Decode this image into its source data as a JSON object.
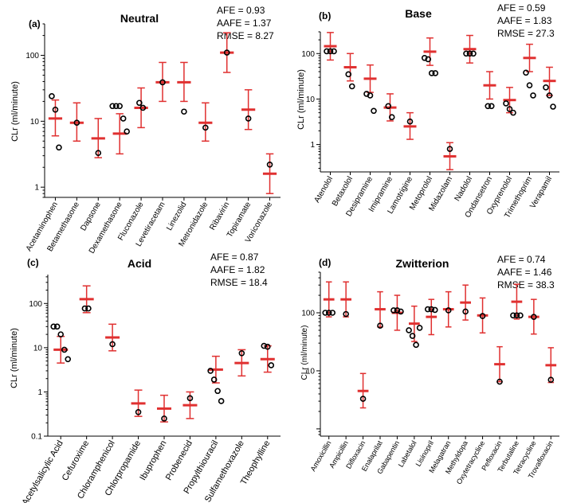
{
  "chart_data": [
    {
      "type": "scatter",
      "panel": "(a)",
      "title": "Neutral",
      "ylabel": "CLr (ml/minute)",
      "yscale": "log",
      "ylim": [
        0.7,
        300
      ],
      "yticks": [
        {
          "v": 1,
          "label": "1"
        },
        {
          "v": 10,
          "label": "10"
        },
        {
          "v": 100,
          "label": "100"
        }
      ],
      "stats": [
        "AFE = 0.93",
        "AAFE = 1.37",
        "RMSE = 8.27"
      ],
      "categories": [
        "Acetaminophen",
        "Betamethasone",
        "Dapsone",
        "Dexamethasone",
        "Fluconazole",
        "Levetiracetam",
        "Linezolid",
        "Metronidazole",
        "Ribavirin",
        "Topiramate",
        "Voriconazole"
      ],
      "predicted": [
        {
          "mean": 11,
          "lo": 6,
          "hi": 21
        },
        {
          "mean": 9.5,
          "lo": 5,
          "hi": 19
        },
        {
          "mean": 5.5,
          "lo": 2.8,
          "hi": 11
        },
        {
          "mean": 6.5,
          "lo": 3.2,
          "hi": 13
        },
        {
          "mean": 16,
          "lo": 8,
          "hi": 32
        },
        {
          "mean": 39,
          "lo": 20,
          "hi": 78
        },
        {
          "mean": 39,
          "lo": 20,
          "hi": 78
        },
        {
          "mean": 9.5,
          "lo": 5,
          "hi": 19
        },
        {
          "mean": 110,
          "lo": 55,
          "hi": 220
        },
        {
          "mean": 15,
          "lo": 7.5,
          "hi": 30
        },
        {
          "mean": 1.6,
          "lo": 0.8,
          "hi": 3.2
        }
      ],
      "observed": [
        [
          24,
          15,
          4
        ],
        [
          9.5
        ],
        [
          3.3
        ],
        [
          17,
          17,
          17,
          11,
          7
        ],
        [
          19,
          16
        ],
        [
          39
        ],
        [
          14
        ],
        [
          8
        ],
        [
          110
        ],
        [
          11
        ],
        [
          2.2
        ]
      ]
    },
    {
      "type": "scatter",
      "panel": "(b)",
      "title": "Base",
      "ylabel": "CLr (ml/minute)",
      "yscale": "log",
      "ylim": [
        0.25,
        300
      ],
      "yticks": [
        {
          "v": 1,
          "label": "1"
        },
        {
          "v": 10,
          "label": "10"
        },
        {
          "v": 100,
          "label": "100"
        }
      ],
      "stats": [
        "AFE = 0.59",
        "AAFE = 1.83",
        "RMSE = 27.3"
      ],
      "categories": [
        "Atenolol",
        "Betaxolol",
        "Desipramine",
        "Imipramine",
        "Lamotrigine",
        "Metoprolol",
        "Midazolam",
        "Nadolol",
        "Ondansetron",
        "Oxyprenolol",
        "Trimethoprim",
        "Verapamil"
      ],
      "predicted": [
        {
          "mean": 145,
          "lo": 72,
          "hi": 290
        },
        {
          "mean": 50,
          "lo": 25,
          "hi": 100
        },
        {
          "mean": 28,
          "lo": 14,
          "hi": 56
        },
        {
          "mean": 6.5,
          "lo": 3.3,
          "hi": 13
        },
        {
          "mean": 2.5,
          "lo": 1.3,
          "hi": 5
        },
        {
          "mean": 110,
          "lo": 55,
          "hi": 220
        },
        {
          "mean": 0.55,
          "lo": 0.28,
          "hi": 1.1
        },
        {
          "mean": 125,
          "lo": 62,
          "hi": 250
        },
        {
          "mean": 20,
          "lo": 10,
          "hi": 40
        },
        {
          "mean": 9.5,
          "lo": 5,
          "hi": 18
        },
        {
          "mean": 80,
          "lo": 40,
          "hi": 160
        },
        {
          "mean": 25,
          "lo": 12,
          "hi": 50
        }
      ],
      "observed": [
        [
          112,
          112,
          112
        ],
        [
          35,
          19
        ],
        [
          13,
          12,
          5.5
        ],
        [
          7,
          4
        ],
        [
          3.2
        ],
        [
          80,
          75,
          37,
          37
        ],
        [
          0.8
        ],
        [
          100,
          100,
          100
        ],
        [
          7,
          7
        ],
        [
          8,
          6,
          5
        ],
        [
          38,
          20,
          12
        ],
        [
          18,
          12,
          6.8
        ]
      ]
    },
    {
      "type": "scatter",
      "panel": "(c)",
      "title": "Acid",
      "ylabel": "CLr (ml/minute)",
      "yscale": "log",
      "ylim": [
        0.1,
        450
      ],
      "yticks": [
        {
          "v": 0.1,
          "label": "0.1"
        },
        {
          "v": 1,
          "label": "1"
        },
        {
          "v": 10,
          "label": "10"
        },
        {
          "v": 100,
          "label": "100"
        }
      ],
      "stats": [
        "AFE = 0.87",
        "AAFE = 1.82",
        "RMSE = 18.4"
      ],
      "categories": [
        "Acetylsalicylic Acid",
        "Cefuroxime",
        "Chloramphenicol",
        "Chlorpropamide",
        "Ibuprophen",
        "Probenecid",
        "Propylthiouracil",
        "Sulfamethoxazole",
        "Theophylline"
      ],
      "predicted": [
        {
          "mean": 9,
          "lo": 4.5,
          "hi": 18
        },
        {
          "mean": 125,
          "lo": 62,
          "hi": 250
        },
        {
          "mean": 17,
          "lo": 8.5,
          "hi": 34
        },
        {
          "mean": 0.55,
          "lo": 0.28,
          "hi": 1.1
        },
        {
          "mean": 0.42,
          "lo": 0.21,
          "hi": 0.84
        },
        {
          "mean": 0.5,
          "lo": 0.25,
          "hi": 1
        },
        {
          "mean": 3.2,
          "lo": 1.6,
          "hi": 6.4
        },
        {
          "mean": 4.5,
          "lo": 2.3,
          "hi": 9
        },
        {
          "mean": 5.5,
          "lo": 2.8,
          "hi": 11
        }
      ],
      "observed": [
        [
          30,
          30,
          20,
          9,
          5.5
        ],
        [
          77,
          77
        ],
        [
          12
        ],
        [
          0.35
        ],
        [
          0.25
        ],
        [
          0.72
        ],
        [
          3,
          1.9,
          1.05,
          0.62
        ],
        [
          7.5
        ],
        [
          11,
          10.5,
          4
        ]
      ]
    },
    {
      "type": "scatter",
      "panel": "(d)",
      "title": "Zwitterion",
      "ylabel": "CLr (ml/minute)",
      "yscale": "log",
      "ylim": [
        0.75,
        500
      ],
      "yticks": [
        {
          "v": 10,
          "label": "10"
        },
        {
          "v": 100,
          "label": "100"
        }
      ],
      "stats": [
        "AFE = 0.74",
        "AAFE = 1.46",
        "RMSE = 38.3"
      ],
      "categories": [
        "Amoxicillin",
        "Ampicillin",
        "Difloxacin",
        "Enalaprilat",
        "Gabapentin",
        "Labetalol",
        "Lisinopril",
        "Melagatran",
        "Methyldopa",
        "Oxytetracycline",
        "Pefloxacin",
        "Terbutaline",
        "Tetracycline",
        "Trovafloxacin"
      ],
      "predicted": [
        {
          "mean": 170,
          "lo": 85,
          "hi": 340
        },
        {
          "mean": 170,
          "lo": 85,
          "hi": 340
        },
        {
          "mean": 4.5,
          "lo": 2.3,
          "hi": 9
        },
        {
          "mean": 115,
          "lo": 57,
          "hi": 230
        },
        {
          "mean": 100,
          "lo": 50,
          "hi": 200
        },
        {
          "mean": 65,
          "lo": 32,
          "hi": 130
        },
        {
          "mean": 85,
          "lo": 42,
          "hi": 170
        },
        {
          "mean": 115,
          "lo": 57,
          "hi": 230
        },
        {
          "mean": 150,
          "lo": 75,
          "hi": 300
        },
        {
          "mean": 90,
          "lo": 45,
          "hi": 180
        },
        {
          "mean": 13,
          "lo": 6.5,
          "hi": 26
        },
        {
          "mean": 155,
          "lo": 78,
          "hi": 310
        },
        {
          "mean": 85,
          "lo": 43,
          "hi": 170
        },
        {
          "mean": 12.5,
          "lo": 6.3,
          "hi": 25
        }
      ],
      "observed": [
        [
          100,
          100,
          100
        ],
        [
          95
        ],
        [
          3.3
        ],
        [
          60
        ],
        [
          110,
          110,
          105
        ],
        [
          50,
          40,
          28,
          55
        ],
        [
          115,
          115,
          112
        ],
        [
          110
        ],
        [
          105
        ],
        [
          88
        ],
        [
          6.5
        ],
        [
          90,
          90,
          90
        ],
        [
          85
        ],
        [
          7
        ]
      ]
    }
  ]
}
